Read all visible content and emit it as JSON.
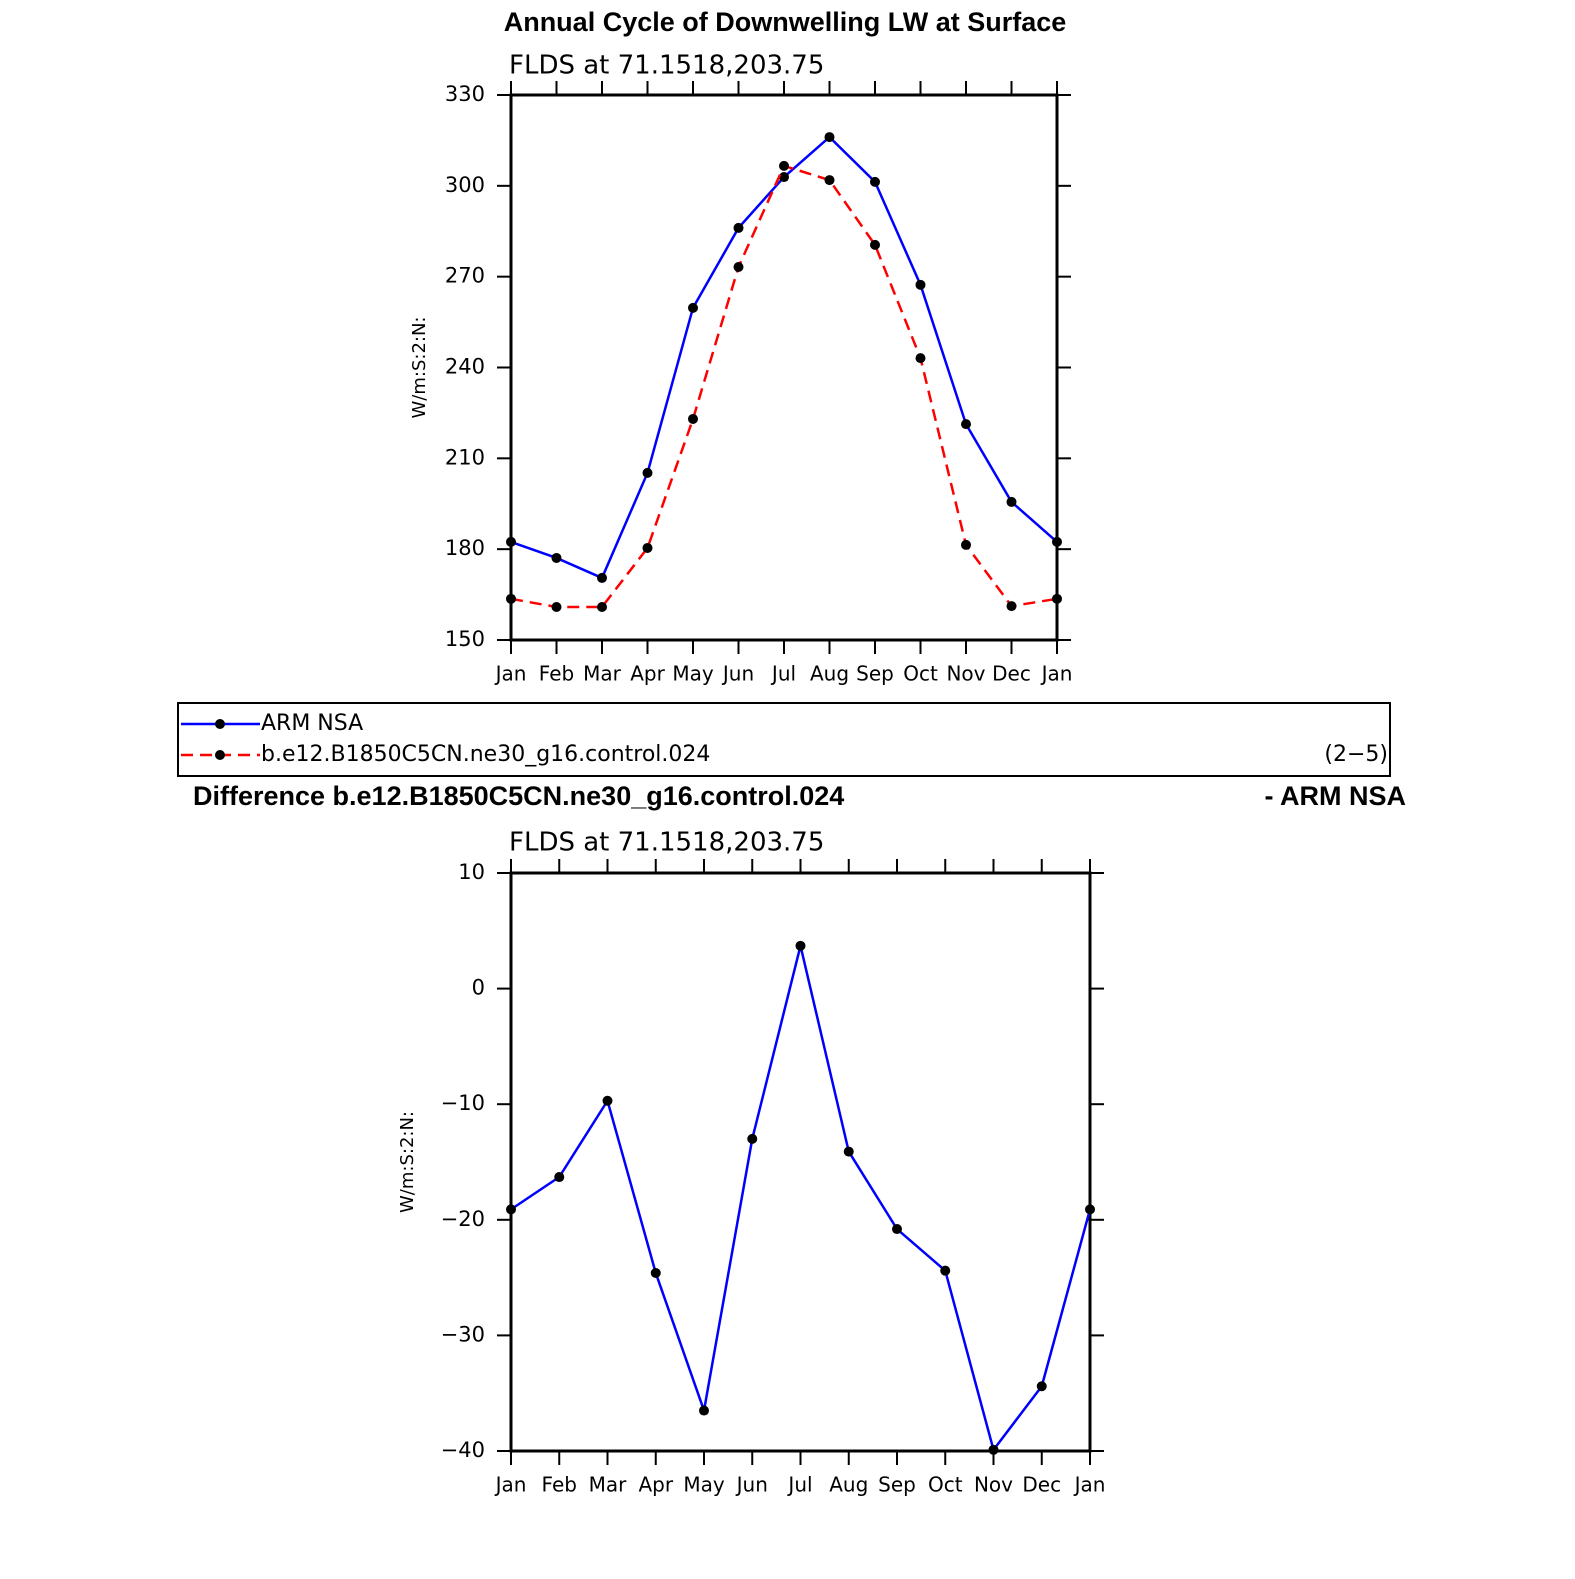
{
  "chart_data": [
    {
      "type": "line",
      "title": "Annual Cycle of Downwelling LW at Surface",
      "subtitle": "FLDS at 71.1518,203.75",
      "ylabel": "W/m:S:2:N:",
      "categories": [
        "Jan",
        "Feb",
        "Mar",
        "Apr",
        "May",
        "Jun",
        "Jul",
        "Aug",
        "Sep",
        "Oct",
        "Nov",
        "Dec",
        "Jan"
      ],
      "series": [
        {
          "name": "ARM NSA",
          "color": "#0000ff",
          "dash": false,
          "values": [
            182.4,
            177.1,
            170.5,
            205.2,
            259.7,
            286.1,
            302.9,
            316.1,
            301.3,
            267.3,
            221.3,
            195.6,
            182.4
          ]
        },
        {
          "name": "b.e12.B1850C5CN.ne30_g16.control.024",
          "color": "#ff0000",
          "dash": true,
          "values": [
            163.6,
            160.9,
            160.9,
            180.4,
            223.0,
            273.2,
            306.6,
            301.9,
            280.5,
            243.1,
            181.4,
            161.2,
            163.6
          ]
        }
      ],
      "ylim": [
        150,
        330
      ],
      "yticks": [
        150,
        180,
        210,
        240,
        270,
        300,
        330
      ],
      "legend_note": "(2−5)"
    },
    {
      "type": "line",
      "title": "Difference b.e12.B1850C5CN.ne30_g16.control.024",
      "title_right": "- ARM NSA",
      "subtitle": "FLDS at 71.1518,203.75",
      "ylabel": "W/m:S:2:N:",
      "categories": [
        "Jan",
        "Feb",
        "Mar",
        "Apr",
        "May",
        "Jun",
        "Jul",
        "Aug",
        "Sep",
        "Oct",
        "Nov",
        "Dec",
        "Jan"
      ],
      "series": [
        {
          "color": "#0000ff",
          "dash": false,
          "values": [
            -19.1,
            -16.3,
            -9.7,
            -24.6,
            -36.5,
            -13.0,
            3.7,
            -14.1,
            -20.8,
            -24.4,
            -39.9,
            -34.4,
            -19.1
          ]
        }
      ],
      "ylim": [
        -40,
        10
      ],
      "yticks": [
        {
          "value": -40,
          "label": "−40"
        },
        {
          "value": -30,
          "label": "−30"
        },
        {
          "value": -20,
          "label": "−20"
        },
        {
          "value": -10,
          "label": "−10"
        },
        0,
        10
      ]
    }
  ]
}
